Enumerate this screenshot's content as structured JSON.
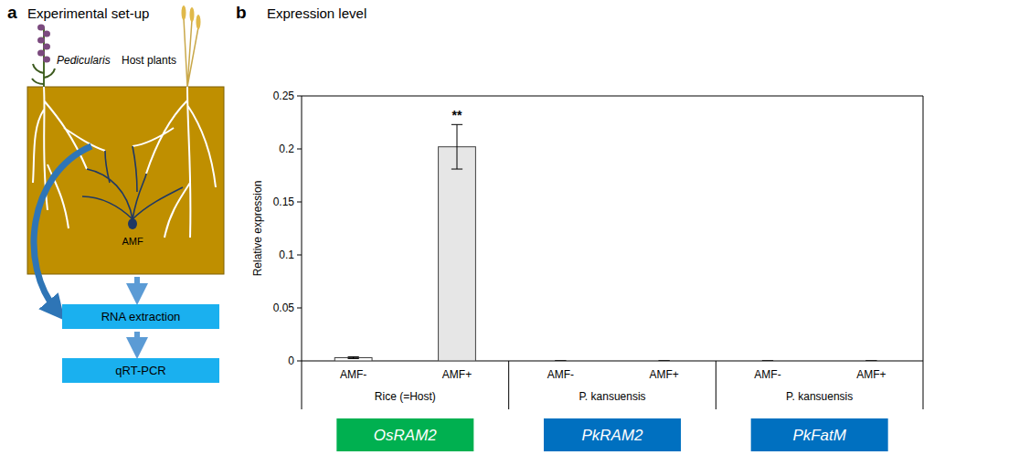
{
  "panel_letters": [
    "a",
    "b"
  ],
  "diagram": {
    "title": "Experimental set-up",
    "plant_labels": [
      "Pedicularis",
      "Host plants"
    ],
    "fungus_label": "AMF",
    "steps": [
      "RNA extraction",
      "qRT-PCR"
    ]
  },
  "chart_data": {
    "type": "bar",
    "title": "Expression level",
    "y_label": "Relative expression",
    "categories": [
      "AMF-",
      "AMF+",
      "AMF-",
      "AMF+",
      "AMF-",
      "AMF+"
    ],
    "values": [
      0.003,
      0.202,
      0,
      0,
      0,
      0
    ],
    "errors": [
      0.0008,
      0.021,
      0,
      0,
      0,
      0
    ],
    "significance": [
      null,
      "**",
      null,
      null,
      null,
      null
    ],
    "colors": [
      "#ffffff",
      "#e6e6e6",
      "#ffffff",
      "#e6e6e6",
      "#ffffff",
      "#e6e6e6"
    ],
    "groups": [
      {
        "name": "Rice (=Host)",
        "gene": "OsRAM2",
        "color": "#00b050",
        "size": 2
      },
      {
        "name": "P. kansuensis",
        "gene": "PkRAM2",
        "color": "#0070c0",
        "size": 2
      },
      {
        "name": "P. kansuensis",
        "gene": "PkFatM",
        "color": "#0070c0",
        "size": 2
      }
    ],
    "ylim": [
      0,
      0.25
    ],
    "yticks": [
      0,
      0.05,
      0.1,
      0.15,
      0.2,
      0.25
    ],
    "grid": false
  }
}
